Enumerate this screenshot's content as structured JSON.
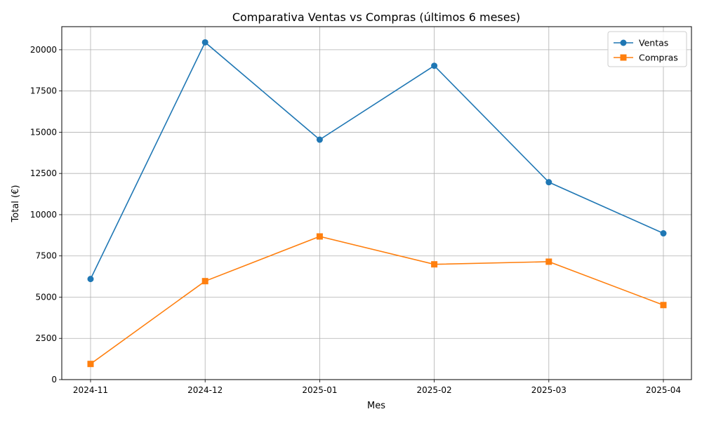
{
  "chart_data": {
    "type": "line",
    "title": "Comparativa Ventas vs Compras (últimos 6 meses)",
    "xlabel": "Mes",
    "ylabel": "Total (€)",
    "categories": [
      "2024-11",
      "2024-12",
      "2025-01",
      "2025-02",
      "2025-03",
      "2025-04"
    ],
    "ylim": [
      0,
      21400
    ],
    "yticks": [
      0,
      2500,
      5000,
      7500,
      10000,
      12500,
      15000,
      17500,
      20000
    ],
    "ytick_labels": [
      "0",
      "2500",
      "5000",
      "7500",
      "10000",
      "12500",
      "15000",
      "17500",
      "20000"
    ],
    "grid": true,
    "legend_position": "top-right",
    "series": [
      {
        "name": "Ventas",
        "color": "#1f77b4",
        "marker": "circle",
        "values": [
          6100,
          20450,
          14550,
          19030,
          11970,
          8870
        ]
      },
      {
        "name": "Compras",
        "color": "#ff7f0e",
        "marker": "square",
        "values": [
          950,
          5970,
          8680,
          6990,
          7150,
          4520
        ]
      }
    ]
  }
}
